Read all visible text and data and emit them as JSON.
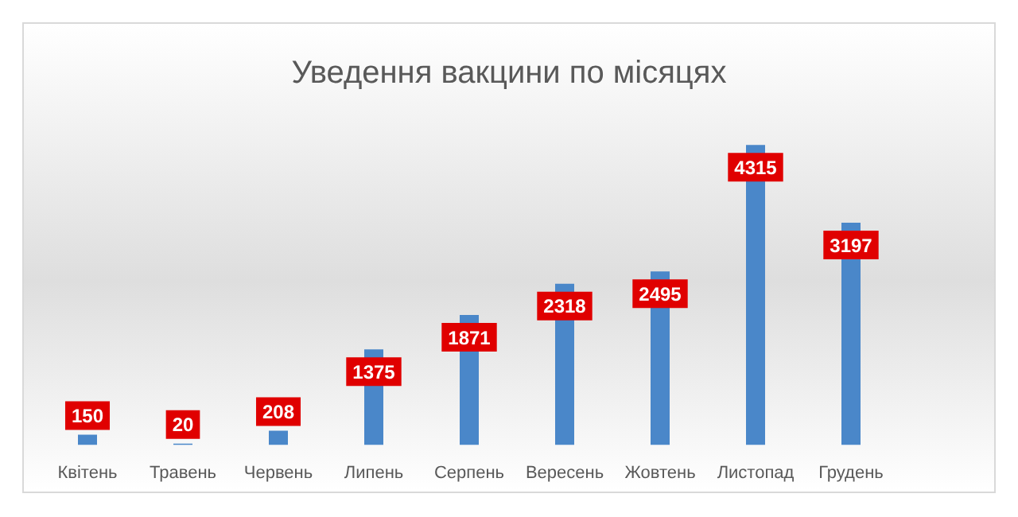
{
  "chart_data": {
    "type": "bar",
    "title": "Уведення вакцини по місяцях",
    "categories": [
      "Квітень",
      "Травень",
      "Червень",
      "Липень",
      "Серпень",
      "Вересень",
      "Жовтень",
      "Листопад",
      "Грудень"
    ],
    "values": [
      150,
      20,
      208,
      1375,
      1871,
      2318,
      2495,
      4315,
      3197
    ],
    "color": "#4a87c9",
    "data_labels": true,
    "grid": false,
    "legend": false
  }
}
